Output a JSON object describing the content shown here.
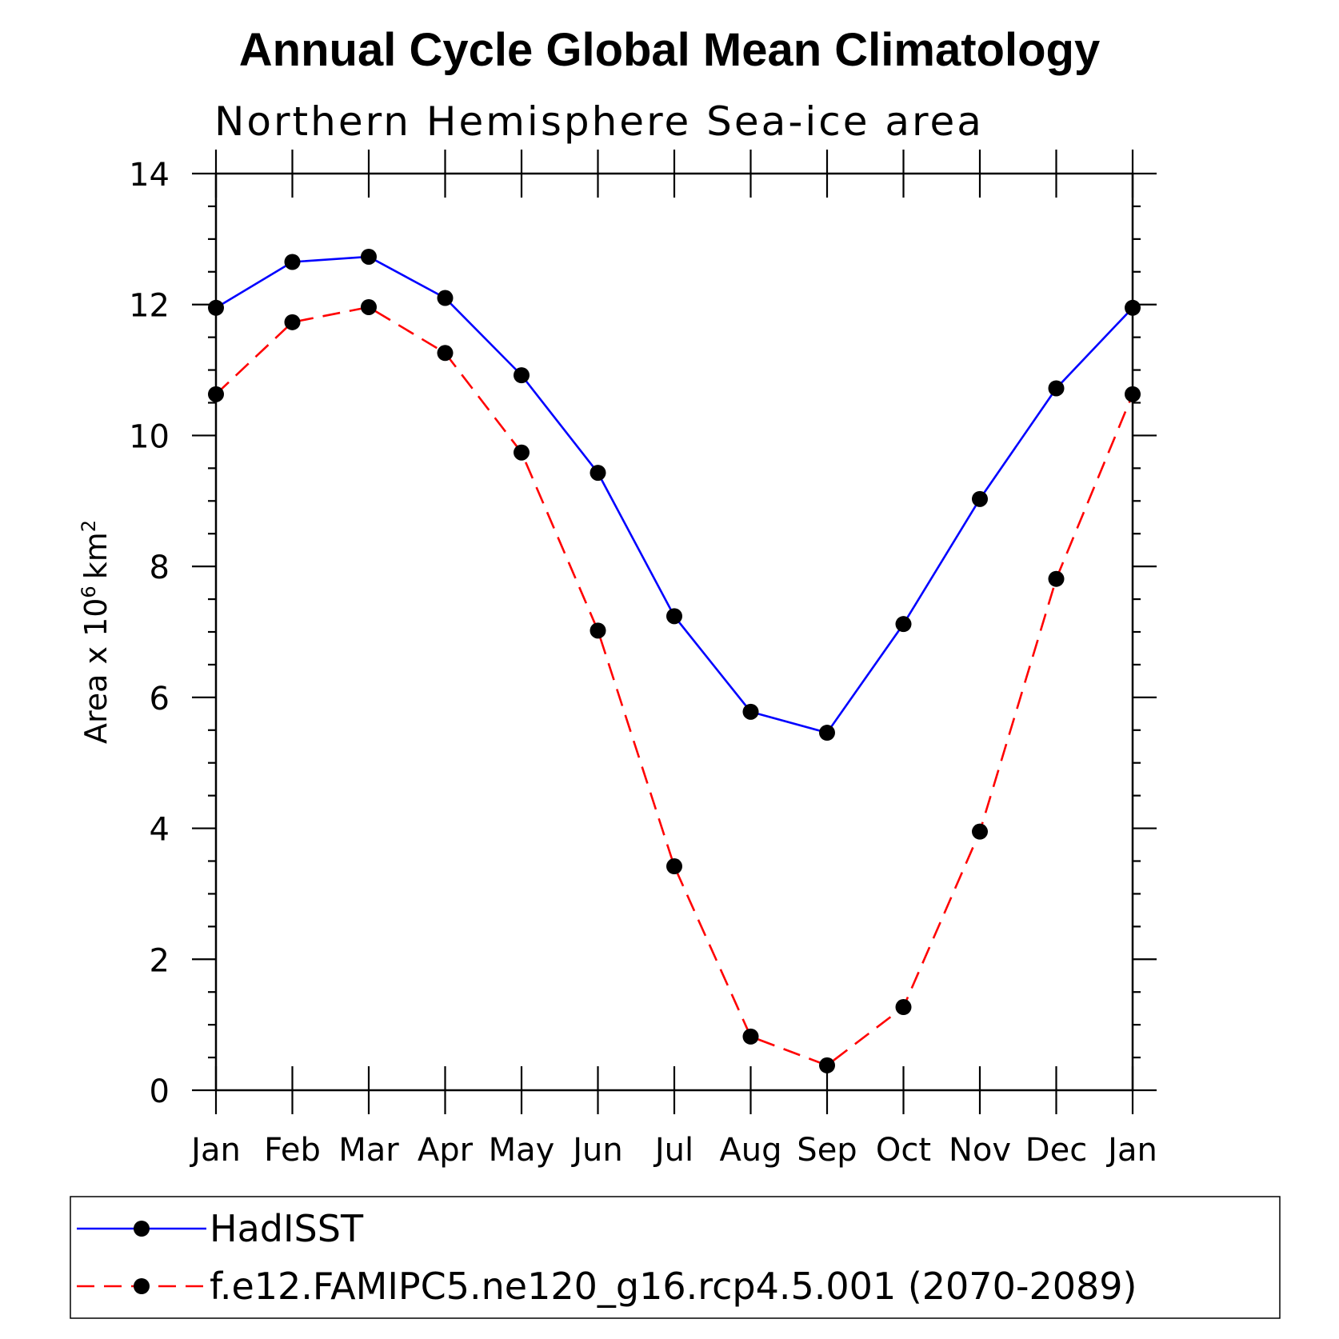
{
  "chart_data": {
    "type": "line",
    "title": "Annual Cycle Global Mean Climatology",
    "subtitle": "Northern Hemisphere Sea-ice area",
    "ylabel": "Area x 10",
    "ylabel_exponent": "6",
    "ylabel_unit": "km",
    "ylabel_unit_exponent": "2",
    "ylim": [
      0,
      14
    ],
    "yticks": [
      "0",
      "2",
      "4",
      "6",
      "8",
      "10",
      "12",
      "14"
    ],
    "categories": [
      "Jan",
      "Feb",
      "Mar",
      "Apr",
      "May",
      "Jun",
      "Jul",
      "Aug",
      "Sep",
      "Oct",
      "Nov",
      "Dec",
      "Jan"
    ],
    "series": [
      {
        "name": "HadISST",
        "color": "#0000ff",
        "dash": "solid",
        "values": [
          11.95,
          12.65,
          12.73,
          12.1,
          10.92,
          9.43,
          7.24,
          5.78,
          5.46,
          7.12,
          9.03,
          10.72,
          11.95
        ]
      },
      {
        "name": "f.e12.FAMIPC5.ne120_g16.rcp4.5.001 (2070-2089)",
        "color": "#ff0000",
        "dash": "dashed",
        "values": [
          10.63,
          11.73,
          11.96,
          11.26,
          9.74,
          7.02,
          3.42,
          0.82,
          0.38,
          1.27,
          3.95,
          7.81,
          10.63
        ]
      }
    ],
    "legend_position": "bottom"
  }
}
